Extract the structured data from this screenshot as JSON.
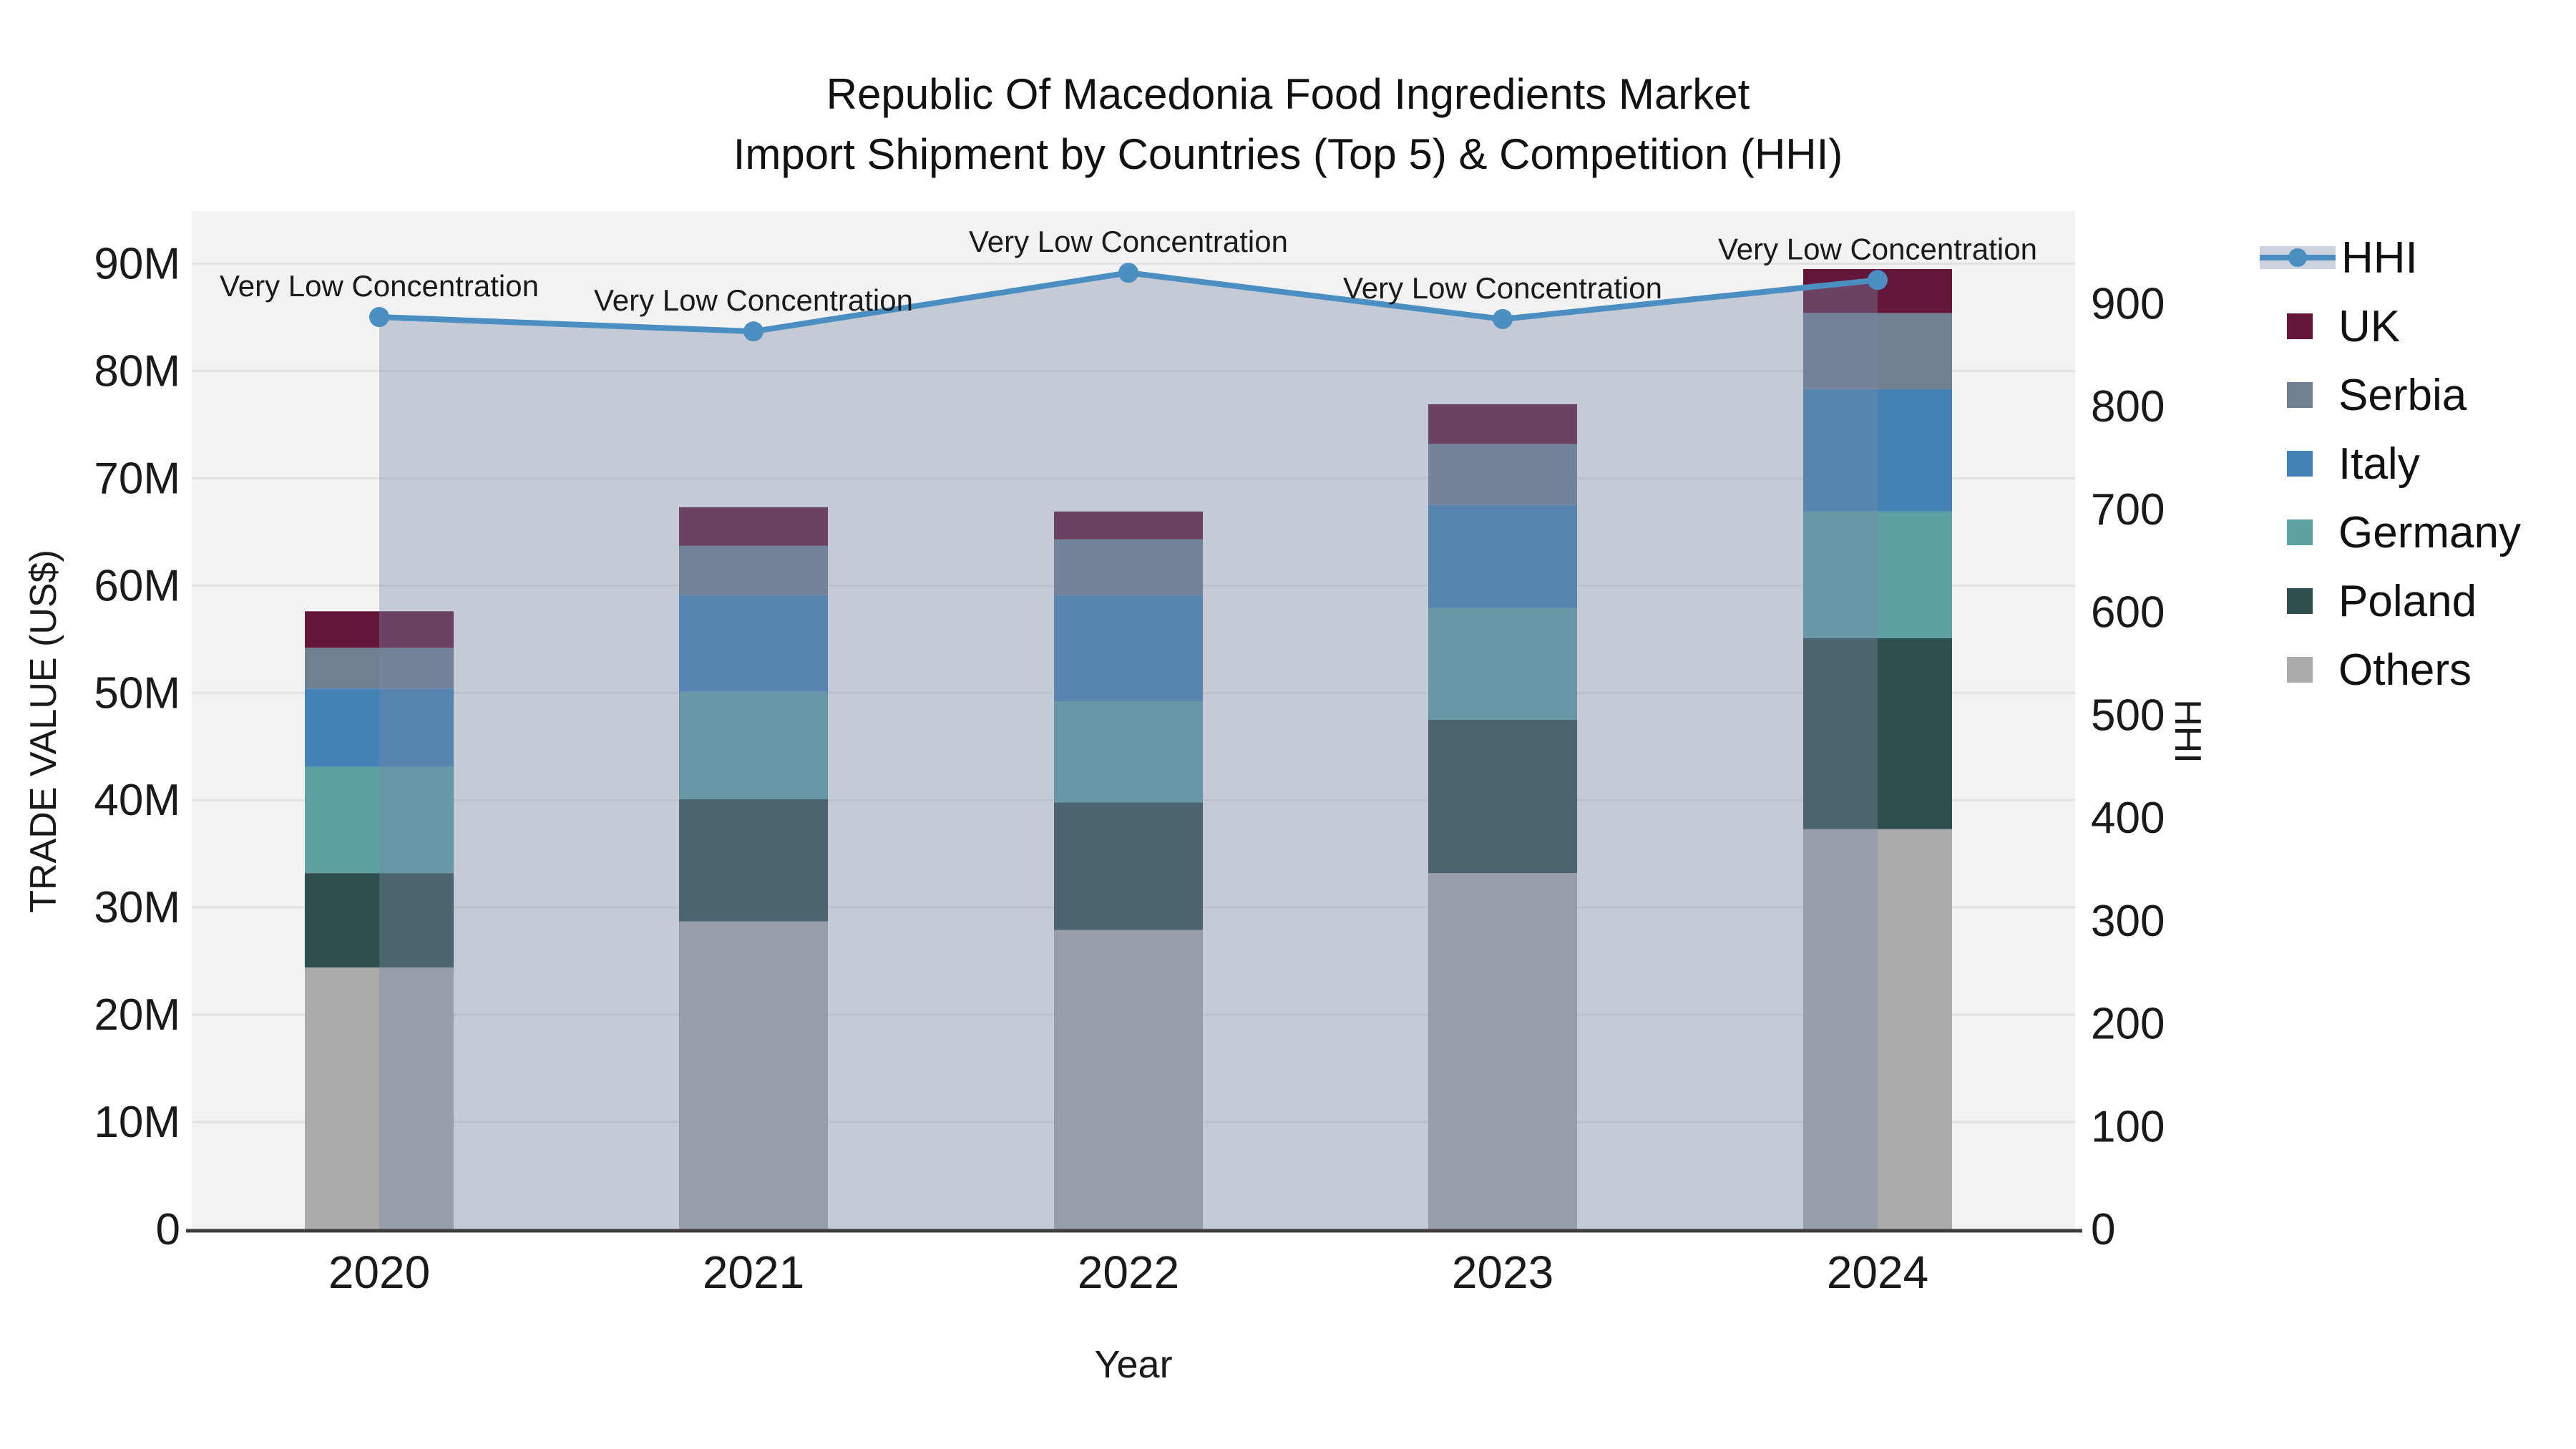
{
  "title": {
    "line1": "Republic Of Macedonia Food Ingredients Market",
    "line2": "Import Shipment by Countries (Top 5) & Competition (HHI)"
  },
  "legend": {
    "items": [
      {
        "label": "HHI",
        "kind": "line",
        "color": "#4a8ec2"
      },
      {
        "label": "UK",
        "kind": "swatch",
        "color": "#65173a"
      },
      {
        "label": "Serbia",
        "kind": "swatch",
        "color": "#708090"
      },
      {
        "label": "Italy",
        "kind": "swatch",
        "color": "#4482b8"
      },
      {
        "label": "Germany",
        "kind": "swatch",
        "color": "#5da1a2"
      },
      {
        "label": "Poland",
        "kind": "swatch",
        "color": "#2f4f4e"
      },
      {
        "label": "Others",
        "kind": "swatch",
        "color": "#acabaa"
      }
    ]
  },
  "chart_data": {
    "type": "bar+line",
    "title": "Republic Of Macedonia Food Ingredients Market Import Shipment by Countries (Top 5) & Competition (HHI)",
    "xlabel": "Year",
    "ylabel_left": "TRADE VALUE (US$)",
    "ylabel_right": "HHI",
    "categories": [
      "2020",
      "2021",
      "2022",
      "2023",
      "2024"
    ],
    "bar_value_unit": "million US$",
    "stack_order_bottom_to_top": [
      "Others",
      "Poland",
      "Germany",
      "Italy",
      "Serbia",
      "UK"
    ],
    "series": [
      {
        "name": "Others",
        "color": "#acabaa",
        "values": [
          24.4,
          28.7,
          27.9,
          33.2,
          37.3
        ]
      },
      {
        "name": "Poland",
        "color": "#2f4f4e",
        "values": [
          8.8,
          11.4,
          11.9,
          14.3,
          17.8
        ]
      },
      {
        "name": "Germany",
        "color": "#5da1a2",
        "values": [
          9.9,
          10.0,
          9.4,
          10.4,
          11.8
        ]
      },
      {
        "name": "Italy",
        "color": "#4482b8",
        "values": [
          7.3,
          9.0,
          9.9,
          9.6,
          11.4
        ]
      },
      {
        "name": "Serbia",
        "color": "#708090",
        "values": [
          3.8,
          4.6,
          5.2,
          5.7,
          7.1
        ]
      },
      {
        "name": "UK",
        "color": "#65173a",
        "values": [
          3.4,
          3.6,
          2.6,
          3.7,
          4.1
        ]
      }
    ],
    "bar_totals": [
      57.6,
      67.3,
      66.9,
      76.9,
      89.5
    ],
    "line_series": {
      "name": "HHI",
      "color": "#4a8ec2",
      "area_fill": "rgba(120,136,168,0.38)",
      "values": [
        887,
        873,
        930,
        885,
        923
      ]
    },
    "annotations": {
      "per_point": [
        "Very Low Concentration",
        "Very Low Concentration",
        "Very Low Concentration",
        "Very Low Concentration",
        "Very Low Concentration"
      ]
    },
    "left_axis": {
      "tick_values": [
        0,
        10,
        20,
        30,
        40,
        50,
        60,
        70,
        80,
        90
      ],
      "tick_labels": [
        "0",
        "10M",
        "20M",
        "30M",
        "40M",
        "50M",
        "60M",
        "70M",
        "80M",
        "90M"
      ],
      "max": 94.9,
      "grid": true
    },
    "right_axis": {
      "tick_values": [
        0,
        100,
        200,
        300,
        400,
        500,
        600,
        700,
        800,
        900
      ],
      "tick_labels": [
        "0",
        "100",
        "200",
        "300",
        "400",
        "500",
        "600",
        "700",
        "800",
        "900"
      ],
      "max": 990,
      "grid": false
    },
    "legend_position": "right",
    "legend_order": [
      "HHI",
      "UK",
      "Serbia",
      "Italy",
      "Germany",
      "Poland",
      "Others"
    ]
  }
}
